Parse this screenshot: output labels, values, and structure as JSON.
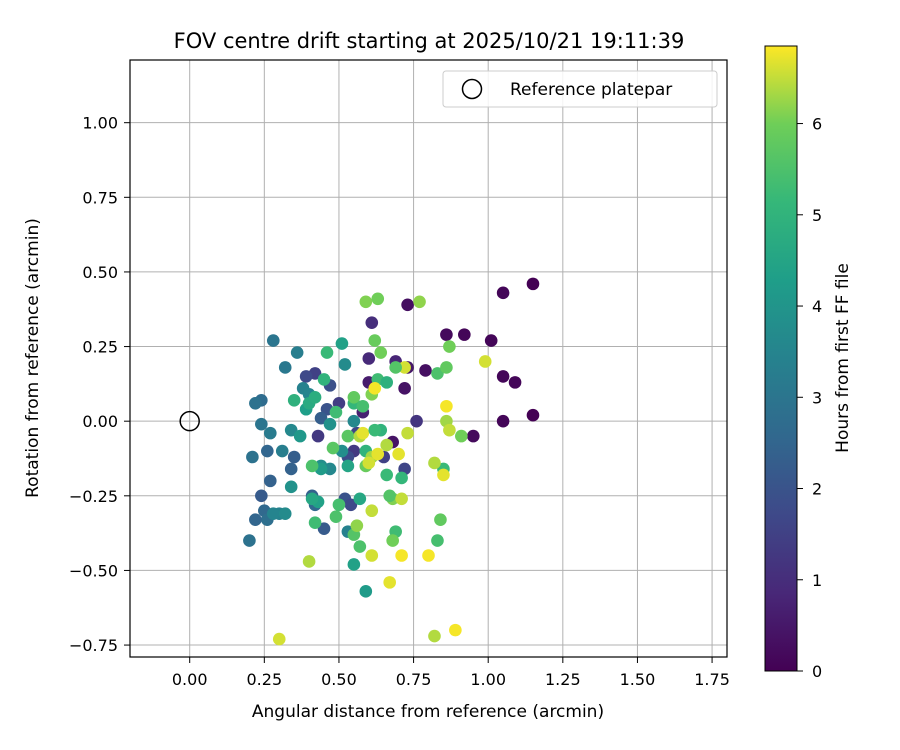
{
  "chart_data": {
    "type": "scatter",
    "title": "FOV centre drift starting at 2025/10/21 19:11:39",
    "xlabel": "Angular distance from reference (arcmin)",
    "ylabel": "Rotation from reference (arcmin)",
    "xlim": [
      -0.2,
      1.8
    ],
    "ylim": [
      -0.79,
      1.21
    ],
    "xticks": [
      0.0,
      0.25,
      0.5,
      0.75,
      1.0,
      1.25,
      1.5,
      1.75
    ],
    "xtick_labels": [
      "0.00",
      "0.25",
      "0.50",
      "0.75",
      "1.00",
      "1.25",
      "1.50",
      "1.75"
    ],
    "yticks": [
      1.0,
      0.75,
      0.5,
      0.25,
      0.0,
      -0.25,
      -0.5,
      -0.75
    ],
    "ytick_labels": [
      "1.00",
      "0.75",
      "0.50",
      "0.25",
      "0.00",
      "−0.25",
      "−0.50",
      "−0.75"
    ],
    "grid": true,
    "legend": {
      "placement": "top-right",
      "label": "Reference platepar"
    },
    "reference_point": {
      "x": 0.0,
      "y": 0.0
    },
    "colorbar": {
      "label": "Hours from first FF file",
      "range": [
        0,
        6.85
      ],
      "ticks": [
        0,
        1,
        2,
        3,
        4,
        5,
        6
      ],
      "tick_labels": [
        "0",
        "1",
        "2",
        "3",
        "4",
        "5",
        "6"
      ],
      "colormap": "viridis"
    },
    "series": [
      {
        "points": [
          [
            1.15,
            0.46,
            0.0
          ],
          [
            1.05,
            0.43,
            0.1
          ],
          [
            0.92,
            0.29,
            0.1
          ],
          [
            1.01,
            0.27,
            0.1
          ],
          [
            0.86,
            0.29,
            0.2
          ],
          [
            1.05,
            0.15,
            0.1
          ],
          [
            1.09,
            0.13,
            0.1
          ],
          [
            1.15,
            0.02,
            0.0
          ],
          [
            1.05,
            0.0,
            0.1
          ],
          [
            0.95,
            -0.05,
            0.2
          ],
          [
            0.79,
            0.17,
            0.3
          ],
          [
            0.73,
            0.39,
            0.3
          ],
          [
            0.72,
            0.11,
            0.4
          ],
          [
            0.73,
            0.18,
            0.5
          ],
          [
            0.68,
            -0.07,
            0.4
          ],
          [
            0.6,
            0.13,
            0.6
          ],
          [
            0.69,
            0.2,
            0.8
          ],
          [
            0.61,
            0.33,
            1.0
          ],
          [
            0.6,
            0.21,
            0.9
          ],
          [
            0.58,
            0.03,
            0.7
          ],
          [
            0.76,
            0.0,
            1.2
          ],
          [
            0.55,
            -0.1,
            1.3
          ],
          [
            0.5,
            0.06,
            1.4
          ],
          [
            0.56,
            -0.04,
            1.6
          ],
          [
            0.53,
            -0.12,
            1.8
          ],
          [
            0.43,
            -0.05,
            1.3
          ],
          [
            0.42,
            0.16,
            1.5
          ],
          [
            0.39,
            0.15,
            1.7
          ],
          [
            0.46,
            0.04,
            2.0
          ],
          [
            0.44,
            0.01,
            2.3
          ],
          [
            0.47,
            0.12,
            1.9
          ],
          [
            0.65,
            -0.12,
            1.5
          ],
          [
            0.72,
            -0.16,
            1.6
          ],
          [
            0.52,
            -0.26,
            2.0
          ],
          [
            0.54,
            -0.28,
            1.7
          ],
          [
            0.45,
            -0.36,
            2.2
          ],
          [
            0.41,
            -0.25,
            2.4
          ],
          [
            0.42,
            -0.28,
            2.6
          ],
          [
            0.35,
            -0.12,
            2.3
          ],
          [
            0.34,
            -0.16,
            2.4
          ],
          [
            0.26,
            -0.1,
            2.5
          ],
          [
            0.24,
            -0.25,
            2.2
          ],
          [
            0.27,
            -0.2,
            2.4
          ],
          [
            0.25,
            -0.3,
            2.6
          ],
          [
            0.26,
            -0.33,
            2.8
          ],
          [
            0.22,
            -0.33,
            2.5
          ],
          [
            0.2,
            -0.4,
            2.9
          ],
          [
            0.21,
            -0.12,
            2.9
          ],
          [
            0.24,
            0.07,
            2.7
          ],
          [
            0.22,
            0.06,
            2.9
          ],
          [
            0.24,
            -0.01,
            3.0
          ],
          [
            0.27,
            -0.04,
            3.2
          ],
          [
            0.28,
            0.27,
            3.0
          ],
          [
            0.32,
            0.18,
            3.1
          ],
          [
            0.36,
            0.23,
            3.3
          ],
          [
            0.38,
            0.11,
            3.4
          ],
          [
            0.4,
            0.09,
            3.5
          ],
          [
            0.31,
            -0.1,
            3.3
          ],
          [
            0.34,
            -0.03,
            3.6
          ],
          [
            0.3,
            -0.31,
            3.4
          ],
          [
            0.28,
            -0.31,
            3.5
          ],
          [
            0.32,
            -0.31,
            3.7
          ],
          [
            0.34,
            -0.22,
            3.9
          ],
          [
            0.44,
            -0.15,
            3.8
          ],
          [
            0.47,
            -0.16,
            3.6
          ],
          [
            0.53,
            -0.37,
            3.4
          ],
          [
            0.51,
            -0.1,
            3.8
          ],
          [
            0.55,
            0.0,
            3.6
          ],
          [
            0.52,
            0.19,
            3.7
          ],
          [
            0.47,
            -0.01,
            3.9
          ],
          [
            0.44,
            -0.16,
            4.2
          ],
          [
            0.43,
            -0.27,
            4.4
          ],
          [
            0.37,
            -0.05,
            4.1
          ],
          [
            0.41,
            -0.26,
            4.6
          ],
          [
            0.59,
            -0.57,
            4.2
          ],
          [
            0.55,
            -0.48,
            4.4
          ],
          [
            0.53,
            -0.15,
            4.5
          ],
          [
            0.51,
            0.26,
            4.4
          ],
          [
            0.39,
            0.04,
            4.3
          ],
          [
            0.4,
            0.06,
            4.7
          ],
          [
            0.35,
            0.07,
            4.9
          ],
          [
            0.42,
            0.08,
            4.8
          ],
          [
            0.45,
            0.14,
            5.0
          ],
          [
            0.46,
            0.23,
            5.2
          ],
          [
            0.49,
            0.03,
            5.3
          ],
          [
            0.55,
            0.06,
            5.1
          ],
          [
            0.58,
            0.05,
            5.4
          ],
          [
            0.59,
            -0.1,
            5.0
          ],
          [
            0.63,
            0.14,
            5.3
          ],
          [
            0.64,
            -0.03,
            5.0
          ],
          [
            0.66,
            -0.18,
            5.2
          ],
          [
            0.71,
            -0.19,
            5.1
          ],
          [
            0.69,
            -0.37,
            5.3
          ],
          [
            0.41,
            -0.15,
            5.5
          ],
          [
            0.42,
            -0.34,
            5.3
          ],
          [
            0.49,
            -0.32,
            5.5
          ],
          [
            0.5,
            -0.28,
            5.4
          ],
          [
            0.55,
            -0.38,
            5.6
          ],
          [
            0.57,
            -0.42,
            5.5
          ],
          [
            0.53,
            -0.05,
            5.7
          ],
          [
            0.55,
            0.08,
            5.8
          ],
          [
            0.59,
            -0.15,
            5.9
          ],
          [
            0.61,
            0.09,
            6.1
          ],
          [
            0.62,
            0.27,
            5.9
          ],
          [
            0.64,
            0.23,
            6.0
          ],
          [
            0.59,
            0.4,
            6.1
          ],
          [
            0.63,
            0.41,
            6.0
          ],
          [
            0.77,
            0.4,
            6.2
          ],
          [
            0.83,
            0.16,
            5.5
          ],
          [
            0.86,
            0.18,
            5.8
          ],
          [
            0.87,
            0.25,
            6.0
          ],
          [
            0.86,
            0.0,
            6.3
          ],
          [
            0.91,
            -0.05,
            6.0
          ],
          [
            0.85,
            -0.16,
            5.2
          ],
          [
            0.84,
            -0.33,
            5.8
          ],
          [
            0.83,
            -0.4,
            5.4
          ],
          [
            0.68,
            -0.4,
            6.0
          ],
          [
            0.68,
            -0.26,
            6.1
          ],
          [
            0.67,
            -0.25,
            5.6
          ],
          [
            0.61,
            -0.12,
            6.3
          ],
          [
            0.57,
            -0.05,
            6.4
          ],
          [
            0.6,
            -0.14,
            6.6
          ],
          [
            0.61,
            -0.3,
            6.5
          ],
          [
            0.56,
            -0.35,
            6.2
          ],
          [
            0.61,
            -0.45,
            6.6
          ],
          [
            0.67,
            -0.54,
            6.7
          ],
          [
            0.71,
            -0.45,
            6.8
          ],
          [
            0.71,
            -0.26,
            6.5
          ],
          [
            0.7,
            -0.11,
            6.7
          ],
          [
            0.73,
            -0.04,
            6.5
          ],
          [
            0.82,
            -0.14,
            6.4
          ],
          [
            0.85,
            -0.18,
            6.7
          ],
          [
            0.87,
            -0.03,
            6.5
          ],
          [
            0.86,
            0.05,
            6.8
          ],
          [
            0.99,
            0.2,
            6.6
          ],
          [
            0.8,
            -0.45,
            6.8
          ],
          [
            0.82,
            -0.72,
            6.4
          ],
          [
            0.89,
            -0.7,
            6.8
          ],
          [
            0.3,
            -0.73,
            6.6
          ],
          [
            0.4,
            -0.47,
            6.4
          ],
          [
            0.58,
            -0.04,
            6.7
          ],
          [
            0.62,
            0.11,
            6.8
          ],
          [
            0.66,
            -0.08,
            6.4
          ],
          [
            0.72,
            0.18,
            6.6
          ],
          [
            0.63,
            -0.11,
            6.7
          ],
          [
            0.48,
            -0.09,
            5.7
          ],
          [
            0.57,
            -0.26,
            4.6
          ],
          [
            0.62,
            -0.03,
            5.2
          ],
          [
            0.66,
            0.13,
            4.9
          ],
          [
            0.69,
            0.18,
            5.6
          ]
        ]
      }
    ]
  }
}
